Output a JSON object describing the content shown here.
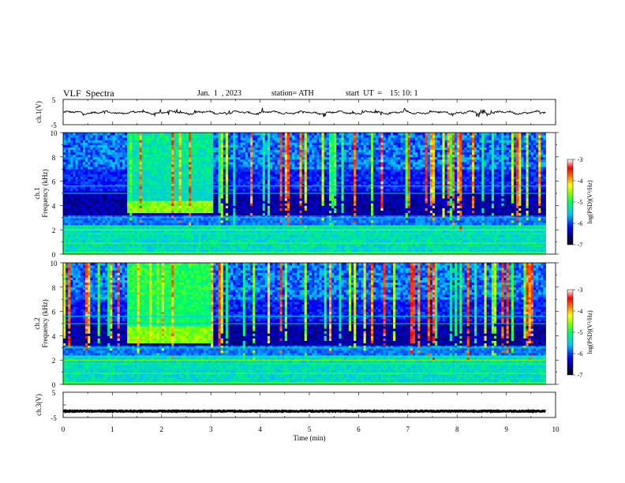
{
  "header": {
    "title": "VLF  Spectra",
    "date": "Jan.  1  , 2023",
    "station": "station= ATH",
    "start_ut": "start  UT  =    15: 10: 1"
  },
  "chart_data": [
    {
      "type": "line",
      "panel": "ch1-waveform",
      "ylabel": "ch.1(V)",
      "ylim": [
        -5,
        5
      ],
      "yticks": [
        "5",
        "-5"
      ],
      "xlim": [
        0,
        10
      ],
      "series_color": "#000000",
      "note_values": "signal fluctuates around -0.2 V with spikes to about ±1.5 V",
      "level": -0.2,
      "x_end": 9.8
    },
    {
      "type": "heatmap",
      "panel": "ch1-spectrogram",
      "ylabel": "ch.1\nFrequency  (kHz)",
      "ylim": [
        0,
        10
      ],
      "yticks": [
        "0",
        "2",
        "4",
        "6",
        "8",
        "10"
      ],
      "xlim": [
        0,
        10
      ],
      "x_end": 9.8,
      "colorbar": {
        "label": "log(PSD)(V²/Hz)",
        "range": [
          -7,
          -3
        ],
        "ticks": [
          "-3",
          "-4",
          "-5",
          "-6",
          "-7"
        ]
      },
      "burst": {
        "x_start": 1.3,
        "x_end": 3.05,
        "f_low": 3.5,
        "f_high": 4.3
      }
    },
    {
      "type": "heatmap",
      "panel": "ch2-spectrogram",
      "ylabel": "ch.2\nFrequency  (kHz)",
      "ylim": [
        0,
        10
      ],
      "yticks": [
        "0",
        "2",
        "4",
        "6",
        "8",
        "10"
      ],
      "xlim": [
        0,
        10
      ],
      "x_end": 9.8,
      "colorbar": {
        "label": "log(PSD)(V²/Hz)",
        "range": [
          -7,
          -3
        ],
        "ticks": [
          "-3",
          "-4",
          "-5",
          "-6",
          "-7"
        ]
      },
      "burst": {
        "x_start": 1.3,
        "x_end": 3.05,
        "f_low": 3.5,
        "f_high": 4.8
      }
    },
    {
      "type": "line",
      "panel": "ch3-waveform",
      "ylabel": "ch.3(V)",
      "ylim": [
        -5,
        5
      ],
      "yticks": [
        "5",
        "-5"
      ],
      "xlim": [
        0,
        10
      ],
      "series_color": "#000000",
      "level": -2.5,
      "x_end": 9.8,
      "xlabel": "Time  (min)",
      "xticks": [
        "0",
        "1",
        "2",
        "3",
        "4",
        "5",
        "6",
        "7",
        "8",
        "9",
        "10"
      ]
    }
  ]
}
